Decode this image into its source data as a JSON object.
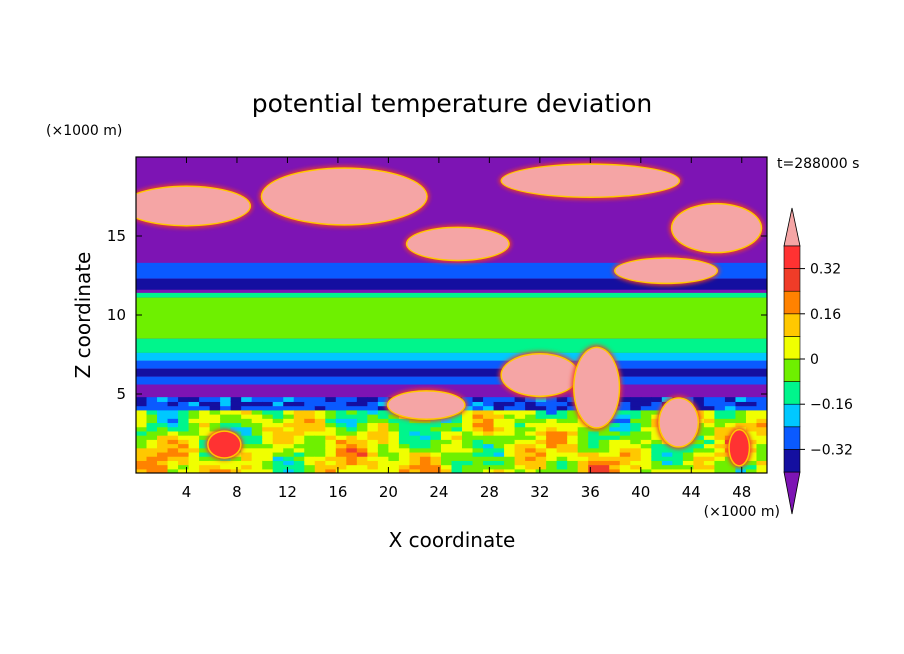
{
  "chart_data": {
    "type": "heatmap",
    "title": "potential temperature deviation",
    "xlabel": "X coordinate",
    "ylabel": "Z coordinate",
    "x_unit": "(×1000 m)",
    "y_unit": "(×1000 m)",
    "time_label": "t=288000 s",
    "xlim": [
      0,
      50
    ],
    "ylim": [
      0,
      20
    ],
    "x_ticks": [
      4,
      8,
      12,
      16,
      20,
      24,
      28,
      32,
      36,
      40,
      44,
      48
    ],
    "y_ticks": [
      5,
      10,
      15
    ],
    "colorbar": {
      "levels": [
        -0.4,
        -0.32,
        -0.24,
        -0.16,
        -0.08,
        0,
        0.08,
        0.16,
        0.24,
        0.32,
        0.4
      ],
      "labeled_levels": [
        0.32,
        0.16,
        0,
        -0.16,
        -0.32
      ],
      "tick_labels": [
        "0.32",
        "0.16",
        "0",
        "−0.16",
        "−0.32"
      ],
      "colors": [
        "#7d14b4",
        "#140fa0",
        "#0a5aff",
        "#00c8ff",
        "#00f58c",
        "#6ef000",
        "#f0ff00",
        "#ffc800",
        "#ff8200",
        "#f03c28",
        "#ff3232",
        "#f5a5a5"
      ],
      "extend": "both"
    },
    "features": {
      "background": "#7d14b4",
      "bands": [
        {
          "z": [
            13.1,
            13.3
          ],
          "value": -0.28
        },
        {
          "z": [
            12.3,
            13.1
          ],
          "value": -0.3
        },
        {
          "z": [
            11.6,
            12.3
          ],
          "value": -0.35
        },
        {
          "z": [
            11.1,
            11.4
          ],
          "value": -0.12
        },
        {
          "z": [
            8.5,
            11.1
          ],
          "value": -0.05
        },
        {
          "z": [
            7.6,
            8.5
          ],
          "value": -0.12
        },
        {
          "z": [
            7.1,
            7.6
          ],
          "value": -0.2
        },
        {
          "z": [
            6.6,
            7.1
          ],
          "value": -0.3
        },
        {
          "z": [
            6.1,
            6.6
          ],
          "value": -0.35
        },
        {
          "z": [
            5.6,
            6.1
          ],
          "value": -0.3
        }
      ],
      "warm_cells": [
        {
          "x": 16.5,
          "z": 17.5,
          "w": 13,
          "h": 3.5,
          "value": 0.4
        },
        {
          "x": 4,
          "z": 16.9,
          "w": 10,
          "h": 2.4,
          "value": 0.4
        },
        {
          "x": 25.5,
          "z": 14.5,
          "w": 8,
          "h": 2,
          "value": 0.4
        },
        {
          "x": 36,
          "z": 18.5,
          "w": 14,
          "h": 2,
          "value": 0.4
        },
        {
          "x": 46,
          "z": 15.5,
          "w": 7,
          "h": 3,
          "value": 0.4
        },
        {
          "x": 42,
          "z": 12.8,
          "w": 8,
          "h": 1.5,
          "value": 0.4
        },
        {
          "x": 32,
          "z": 6.2,
          "w": 6,
          "h": 2.6,
          "value": 0.4
        },
        {
          "x": 36.5,
          "z": 5.4,
          "w": 3.5,
          "h": 5,
          "value": 0.4
        },
        {
          "x": 23,
          "z": 4.3,
          "w": 6,
          "h": 1.7,
          "value": 0.4
        },
        {
          "x": 43,
          "z": 3.2,
          "w": 3,
          "h": 3,
          "value": 0.4
        },
        {
          "x": 7,
          "z": 1.8,
          "w": 2.5,
          "h": 1.6,
          "value": 0.36
        },
        {
          "x": 47.8,
          "z": 1.6,
          "w": 1.5,
          "h": 2.2,
          "value": 0.36
        }
      ],
      "surface_layer": {
        "z": [
          0,
          4.8
        ],
        "value_range": [
          -0.32,
          0.36
        ]
      }
    }
  }
}
